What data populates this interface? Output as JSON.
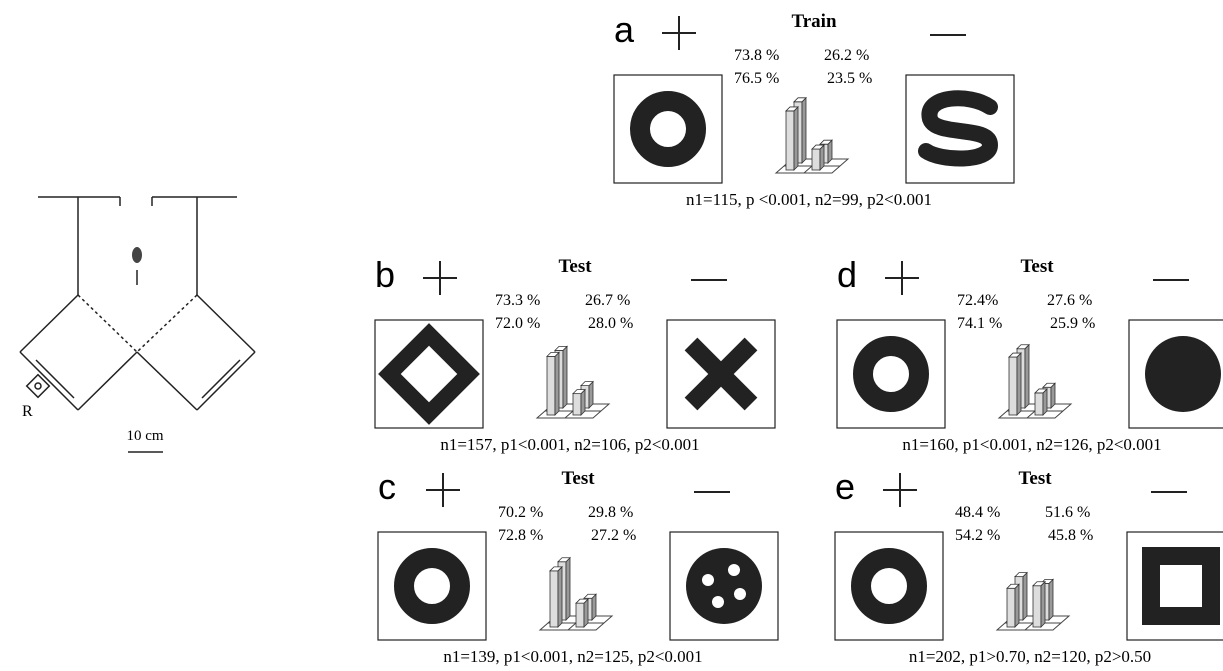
{
  "maze": {
    "reward_label": "R",
    "scale_label": "10 cm"
  },
  "panels": [
    {
      "letter": "a",
      "title": "Train",
      "values": [
        73.8,
        26.2,
        76.5,
        23.5
      ],
      "value_labels": [
        "73.8 %",
        "26.2 %",
        "76.5 %",
        "23.5 %"
      ],
      "stats": "n1=115, p <0.001, n2=99, p2<0.001"
    },
    {
      "letter": "b",
      "title": "Test",
      "values": [
        73.3,
        26.7,
        72.0,
        28.0
      ],
      "value_labels": [
        "73.3 %",
        "26.7 %",
        "72.0 %",
        "28.0 %"
      ],
      "stats": "n1=157, p1<0.001, n2=106, p2<0.001"
    },
    {
      "letter": "c",
      "title": "Test",
      "values": [
        70.2,
        29.8,
        72.8,
        27.2
      ],
      "value_labels": [
        "70.2 %",
        "29.8 %",
        "72.8 %",
        "27.2 %"
      ],
      "stats": "n1=139, p1<0.001, n2=125, p2<0.001"
    },
    {
      "letter": "d",
      "title": "Test",
      "values": [
        72.4,
        27.6,
        74.1,
        25.9
      ],
      "value_labels": [
        "72.4%",
        "27.6 %",
        "74.1 %",
        "25.9 %"
      ],
      "stats": "n1=160, p1<0.001, n2=126, p2<0.001"
    },
    {
      "letter": "e",
      "title": "Test",
      "values": [
        48.4,
        51.6,
        54.2,
        45.8
      ],
      "value_labels": [
        "48.4 %",
        "51.6 %",
        "54.2 %",
        "45.8 %"
      ],
      "stats": "n1=202, p1>0.70, n2=120, p2>0.50"
    }
  ]
}
